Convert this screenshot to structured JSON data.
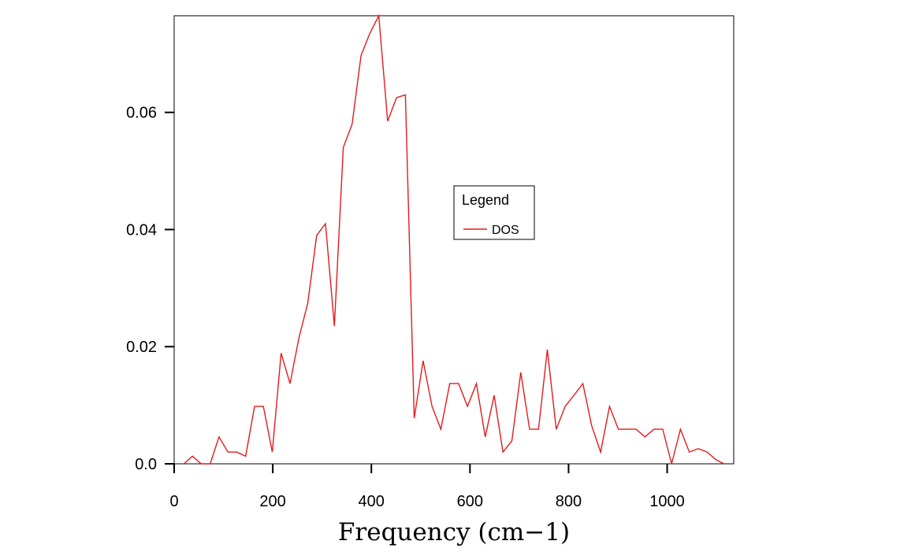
{
  "chart_data": {
    "type": "line",
    "title": "",
    "xlabel": "Frequency (cm−1)",
    "ylabel": "",
    "xlim": [
      0,
      1135
    ],
    "ylim": [
      0,
      0.0765
    ],
    "xticks": [
      0,
      200,
      400,
      600,
      800,
      1000
    ],
    "xtick_labels": [
      "0",
      "200",
      "400",
      "600",
      "800",
      "1000"
    ],
    "yticks": [
      0,
      0.02,
      0.04,
      0.06
    ],
    "ytick_labels": [
      "0.0",
      "0.02",
      "0.04",
      "0.06"
    ],
    "grid": false,
    "legend": {
      "title": "Legend",
      "position": "center-right"
    },
    "series": [
      {
        "name": "DOS",
        "color": "#e41a1c",
        "x": [
          20,
          37,
          55,
          73,
          91,
          109,
          127,
          145,
          163,
          181,
          199,
          217,
          235,
          253,
          271,
          289,
          307,
          325,
          343,
          361,
          379,
          397,
          415,
          433,
          451,
          469,
          487,
          505,
          523,
          541,
          559,
          577,
          595,
          613,
          631,
          649,
          667,
          685,
          703,
          721,
          739,
          757,
          775,
          793,
          811,
          829,
          847,
          865,
          883,
          901,
          919,
          937,
          955,
          973,
          991,
          1009,
          1027,
          1045,
          1063,
          1081,
          1099,
          1115
        ],
        "y": [
          0.0,
          0.0013,
          0.0,
          0.0,
          0.0046,
          0.002,
          0.002,
          0.0013,
          0.0098,
          0.0098,
          0.002,
          0.0189,
          0.0137,
          0.0215,
          0.0274,
          0.039,
          0.041,
          0.0235,
          0.054,
          0.058,
          0.0697,
          0.0735,
          0.0765,
          0.0585,
          0.0625,
          0.063,
          0.0078,
          0.0176,
          0.0098,
          0.0059,
          0.0137,
          0.0137,
          0.0098,
          0.0137,
          0.0046,
          0.0117,
          0.002,
          0.0039,
          0.0156,
          0.0059,
          0.0059,
          0.0195,
          0.0059,
          0.0098,
          0.0117,
          0.0137,
          0.0065,
          0.002,
          0.0098,
          0.0059,
          0.0059,
          0.0059,
          0.0046,
          0.0059,
          0.0059,
          0.0,
          0.0059,
          0.002,
          0.0026,
          0.002,
          0.0007,
          0.0
        ]
      }
    ]
  }
}
